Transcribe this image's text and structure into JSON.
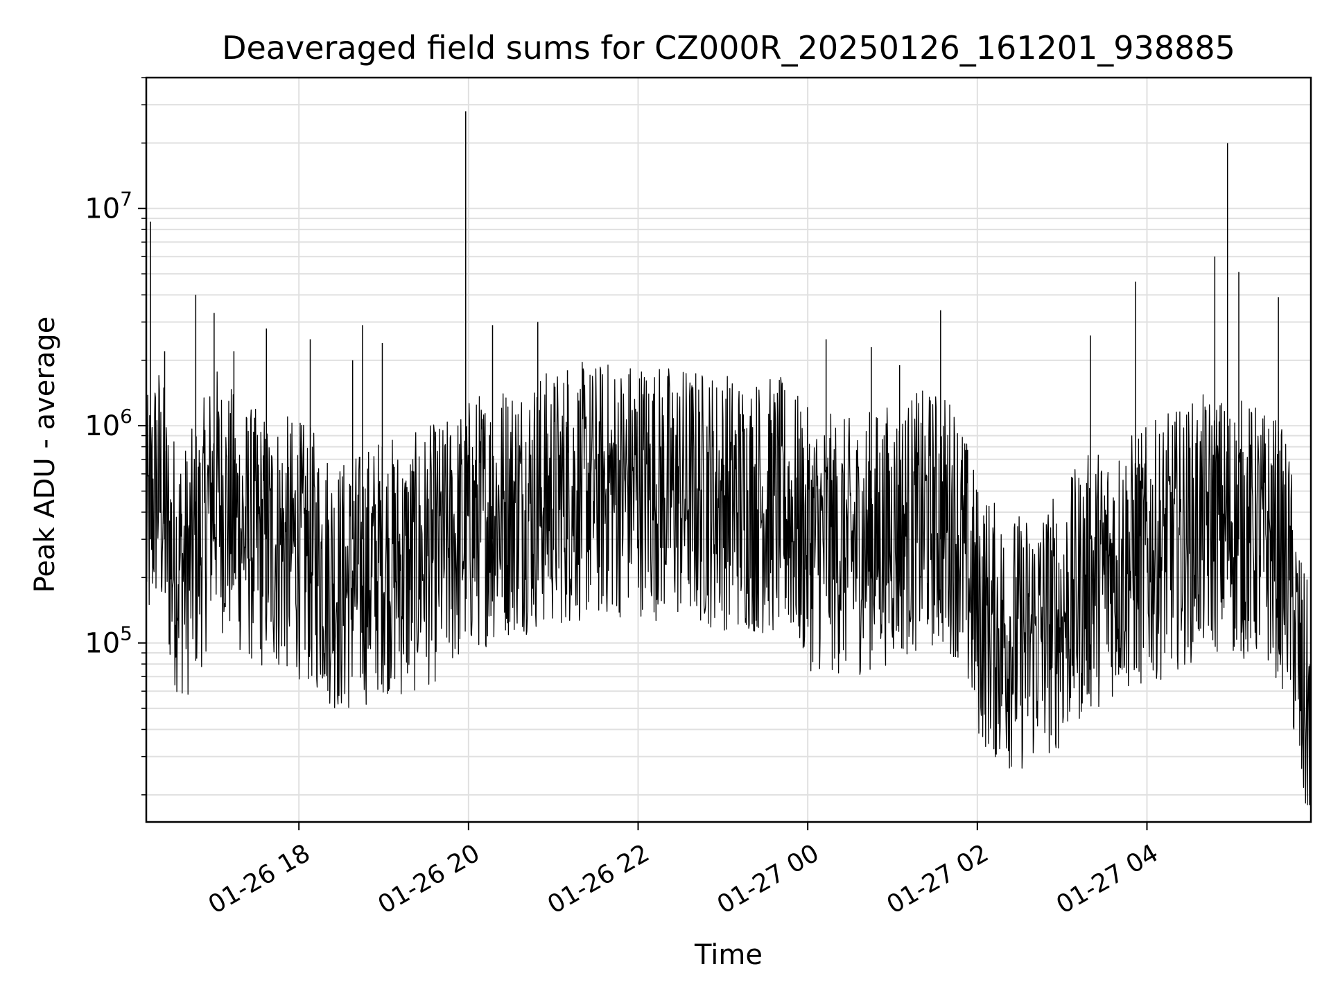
{
  "chart_data": {
    "type": "line",
    "title": "Deaveraged field sums for CZ000R_20250126_161201_938885",
    "xlabel": "Time",
    "ylabel": "Peak ADU - average",
    "yscale": "log",
    "ylim": [
      15000,
      40000000
    ],
    "y_ticks": [
      {
        "value": 100000,
        "base": "10",
        "exp": "5"
      },
      {
        "value": 1000000,
        "base": "10",
        "exp": "6"
      },
      {
        "value": 10000000,
        "base": "10",
        "exp": "7"
      }
    ],
    "xlim": [
      "2025-01-26 16:12",
      "2025-01-27 05:56"
    ],
    "x_ticks": [
      {
        "time": "2025-01-26 18:00",
        "label": "01-26 18"
      },
      {
        "time": "2025-01-26 20:00",
        "label": "01-26 20"
      },
      {
        "time": "2025-01-26 22:00",
        "label": "01-26 22"
      },
      {
        "time": "2025-01-27 00:00",
        "label": "01-27 00"
      },
      {
        "time": "2025-01-27 02:00",
        "label": "01-27 02"
      },
      {
        "time": "2025-01-27 04:00",
        "label": "01-27 04"
      }
    ],
    "grid": true,
    "line_color": "#000000",
    "grid_color": "#e0e0e0",
    "series": [
      {
        "x": [
          "2025-01-26 16:12",
          "2025-01-26 16:20",
          "2025-01-26 16:30",
          "2025-01-26 16:40",
          "2025-01-26 16:50",
          "2025-01-26 17:00",
          "2025-01-26 17:15",
          "2025-01-26 17:30",
          "2025-01-26 17:45",
          "2025-01-26 18:00",
          "2025-01-26 18:15",
          "2025-01-26 18:30",
          "2025-01-26 18:45",
          "2025-01-26 19:00",
          "2025-01-26 19:15",
          "2025-01-26 19:30",
          "2025-01-26 19:45",
          "2025-01-26 20:00",
          "2025-01-26 20:15",
          "2025-01-26 20:30",
          "2025-01-26 20:45",
          "2025-01-26 21:00",
          "2025-01-26 21:15",
          "2025-01-26 21:30",
          "2025-01-26 21:45",
          "2025-01-26 22:00",
          "2025-01-26 22:15",
          "2025-01-26 22:30",
          "2025-01-26 22:45",
          "2025-01-26 23:00",
          "2025-01-26 23:15",
          "2025-01-26 23:30",
          "2025-01-26 23:45",
          "2025-01-27 00:00",
          "2025-01-27 00:15",
          "2025-01-27 00:30",
          "2025-01-27 00:45",
          "2025-01-27 01:00",
          "2025-01-27 01:15",
          "2025-01-27 01:30",
          "2025-01-27 01:45",
          "2025-01-27 02:00",
          "2025-01-27 02:15",
          "2025-01-27 02:30",
          "2025-01-27 02:45",
          "2025-01-27 03:00",
          "2025-01-27 03:15",
          "2025-01-27 03:30",
          "2025-01-27 03:45",
          "2025-01-27 04:00",
          "2025-01-27 04:15",
          "2025-01-27 04:30",
          "2025-01-27 04:45",
          "2025-01-27 05:00",
          "2025-01-27 05:15",
          "2025-01-27 05:30",
          "2025-01-27 05:40",
          "2025-01-27 05:50",
          "2025-01-27 05:56"
        ],
        "y": [
          450000,
          800000,
          350000,
          300000,
          400000,
          700000,
          500000,
          420000,
          400000,
          380000,
          320000,
          250000,
          280000,
          330000,
          300000,
          350000,
          380000,
          480000,
          550000,
          600000,
          620000,
          650000,
          680000,
          700000,
          720000,
          750000,
          700000,
          680000,
          660000,
          640000,
          620000,
          600000,
          580000,
          420000,
          400000,
          380000,
          420000,
          450000,
          500000,
          520000,
          480000,
          200000,
          150000,
          140000,
          160000,
          180000,
          250000,
          300000,
          320000,
          350000,
          400000,
          450000,
          500000,
          480000,
          450000,
          400000,
          300000,
          80000,
          60000
        ]
      }
    ],
    "spikes": [
      {
        "x": "2025-01-26 16:15",
        "y": 8700000
      },
      {
        "x": "2025-01-26 16:25",
        "y": 2200000
      },
      {
        "x": "2025-01-26 16:47",
        "y": 4000000
      },
      {
        "x": "2025-01-26 17:00",
        "y": 3300000
      },
      {
        "x": "2025-01-26 17:14",
        "y": 2200000
      },
      {
        "x": "2025-01-26 17:37",
        "y": 2800000
      },
      {
        "x": "2025-01-26 18:08",
        "y": 2500000
      },
      {
        "x": "2025-01-26 18:38",
        "y": 2000000
      },
      {
        "x": "2025-01-26 18:45",
        "y": 2900000
      },
      {
        "x": "2025-01-26 18:59",
        "y": 2400000
      },
      {
        "x": "2025-01-26 19:58",
        "y": 28000000
      },
      {
        "x": "2025-01-26 20:17",
        "y": 2900000
      },
      {
        "x": "2025-01-26 20:49",
        "y": 3000000
      },
      {
        "x": "2025-01-26 21:10",
        "y": 1800000
      },
      {
        "x": "2025-01-27 00:13",
        "y": 2500000
      },
      {
        "x": "2025-01-27 00:45",
        "y": 2300000
      },
      {
        "x": "2025-01-27 01:05",
        "y": 1900000
      },
      {
        "x": "2025-01-27 01:34",
        "y": 3400000
      },
      {
        "x": "2025-01-27 03:20",
        "y": 2600000
      },
      {
        "x": "2025-01-27 03:52",
        "y": 4600000
      },
      {
        "x": "2025-01-27 04:48",
        "y": 6000000
      },
      {
        "x": "2025-01-27 04:57",
        "y": 20000000
      },
      {
        "x": "2025-01-27 05:05",
        "y": 5100000
      },
      {
        "x": "2025-01-27 05:33",
        "y": 3900000
      }
    ]
  }
}
